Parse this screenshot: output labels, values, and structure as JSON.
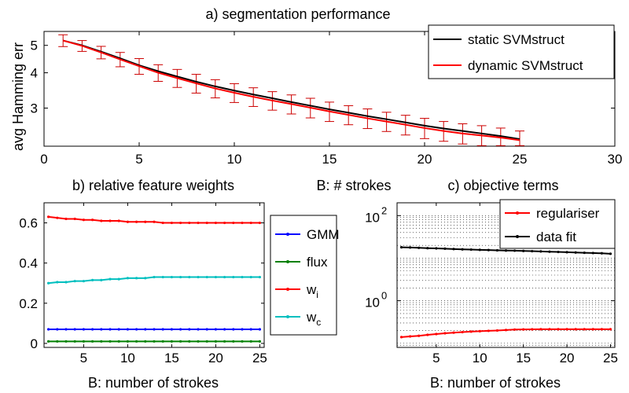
{
  "chart_data": [
    {
      "type": "line",
      "title": "a) segmentation performance",
      "xlabel": "B: # strokes",
      "ylabel": "avg Hamming err",
      "xlim": [
        0,
        30
      ],
      "ylim": [
        2.2,
        5.6
      ],
      "yscale": "log",
      "xticks": [
        0,
        5,
        10,
        15,
        20,
        25,
        30
      ],
      "yticks": [
        3,
        4,
        5
      ],
      "legend_position": "top-right",
      "x": [
        1,
        2,
        3,
        4,
        5,
        6,
        7,
        8,
        9,
        10,
        11,
        12,
        13,
        14,
        15,
        16,
        17,
        18,
        19,
        20,
        21,
        22,
        23,
        24,
        25
      ],
      "series": [
        {
          "name": "static SVMstruct",
          "color": "#000000",
          "values": [
            5.2,
            5.0,
            4.75,
            4.5,
            4.25,
            4.05,
            3.88,
            3.72,
            3.58,
            3.46,
            3.35,
            3.25,
            3.15,
            3.06,
            2.97,
            2.89,
            2.81,
            2.74,
            2.67,
            2.6,
            2.54,
            2.49,
            2.44,
            2.39,
            2.33
          ]
        },
        {
          "name": "dynamic SVMstruct",
          "color": "#ff0000",
          "values": [
            5.2,
            4.98,
            4.72,
            4.46,
            4.22,
            4.0,
            3.83,
            3.67,
            3.52,
            3.4,
            3.29,
            3.19,
            3.1,
            3.01,
            2.92,
            2.84,
            2.76,
            2.69,
            2.62,
            2.55,
            2.49,
            2.44,
            2.4,
            2.36,
            2.31
          ]
        }
      ],
      "error_bars": [
        0.25,
        0.22,
        0.24,
        0.26,
        0.27,
        0.27,
        0.28,
        0.28,
        0.26,
        0.26,
        0.25,
        0.24,
        0.24,
        0.24,
        0.23,
        0.22,
        0.22,
        0.21,
        0.21,
        0.21,
        0.2,
        0.2,
        0.2,
        0.19,
        0.18
      ],
      "error_bar_color": "#cc0000"
    },
    {
      "type": "line",
      "title": "b) relative feature weights",
      "xlabel": "B: number of strokes",
      "ylabel": "",
      "xlim": [
        0.5,
        25.5
      ],
      "ylim": [
        -0.02,
        0.7
      ],
      "xticks": [
        5,
        10,
        15,
        20,
        25
      ],
      "yticks": [
        0,
        0.2,
        0.4,
        0.6
      ],
      "legend_position": "outside-right",
      "x": [
        1,
        2,
        3,
        4,
        5,
        6,
        7,
        8,
        9,
        10,
        11,
        12,
        13,
        14,
        15,
        16,
        17,
        18,
        19,
        20,
        21,
        22,
        23,
        24,
        25
      ],
      "series": [
        {
          "name": "GMM",
          "color": "#0000ff",
          "values": [
            0.07,
            0.07,
            0.07,
            0.07,
            0.07,
            0.07,
            0.07,
            0.07,
            0.07,
            0.07,
            0.07,
            0.07,
            0.07,
            0.07,
            0.07,
            0.07,
            0.07,
            0.07,
            0.07,
            0.07,
            0.07,
            0.07,
            0.07,
            0.07,
            0.07
          ]
        },
        {
          "name": "flux",
          "color": "#008000",
          "values": [
            0.01,
            0.01,
            0.01,
            0.01,
            0.01,
            0.01,
            0.01,
            0.01,
            0.01,
            0.01,
            0.01,
            0.01,
            0.01,
            0.01,
            0.01,
            0.01,
            0.01,
            0.01,
            0.01,
            0.01,
            0.01,
            0.01,
            0.01,
            0.01,
            0.01
          ]
        },
        {
          "name": "w",
          "sub": "i",
          "color": "#ff0000",
          "values": [
            0.63,
            0.625,
            0.62,
            0.62,
            0.615,
            0.615,
            0.61,
            0.61,
            0.61,
            0.605,
            0.605,
            0.605,
            0.605,
            0.6,
            0.6,
            0.6,
            0.6,
            0.6,
            0.6,
            0.6,
            0.6,
            0.6,
            0.6,
            0.6,
            0.6
          ]
        },
        {
          "name": "w",
          "sub": "c",
          "color": "#00bfbf",
          "values": [
            0.3,
            0.305,
            0.305,
            0.31,
            0.31,
            0.315,
            0.315,
            0.32,
            0.32,
            0.325,
            0.325,
            0.325,
            0.33,
            0.33,
            0.33,
            0.33,
            0.33,
            0.33,
            0.33,
            0.33,
            0.33,
            0.33,
            0.33,
            0.33,
            0.33
          ]
        }
      ]
    },
    {
      "type": "line",
      "title": "c) objective terms",
      "xlabel": "B: number of strokes",
      "ylabel": "",
      "xlim": [
        0.5,
        25.5
      ],
      "ylim": [
        0.08,
        200
      ],
      "yscale": "log",
      "ytick_base": "10",
      "ytick_exponents": [
        "2",
        "0"
      ],
      "xticks": [
        5,
        10,
        15,
        20,
        25
      ],
      "legend_position": "top-right",
      "x": [
        1,
        2,
        3,
        4,
        5,
        6,
        7,
        8,
        9,
        10,
        11,
        12,
        13,
        14,
        15,
        16,
        17,
        18,
        19,
        20,
        21,
        22,
        23,
        24,
        25
      ],
      "series": [
        {
          "name": "regulariser",
          "color": "#ff0000",
          "values": [
            0.14,
            0.145,
            0.15,
            0.158,
            0.165,
            0.172,
            0.178,
            0.183,
            0.188,
            0.192,
            0.196,
            0.2,
            0.205,
            0.21,
            0.212,
            0.213,
            0.214,
            0.214,
            0.214,
            0.214,
            0.214,
            0.214,
            0.214,
            0.214,
            0.214
          ]
        },
        {
          "name": "data fit",
          "color": "#000000",
          "values": [
            18,
            17.8,
            17.5,
            17.2,
            17,
            16.7,
            16.4,
            16.1,
            15.9,
            15.7,
            15.5,
            15.3,
            15.1,
            15,
            14.8,
            14.6,
            14.4,
            14.2,
            14,
            13.8,
            13.6,
            13.4,
            13.2,
            13,
            12.7
          ]
        }
      ]
    }
  ]
}
